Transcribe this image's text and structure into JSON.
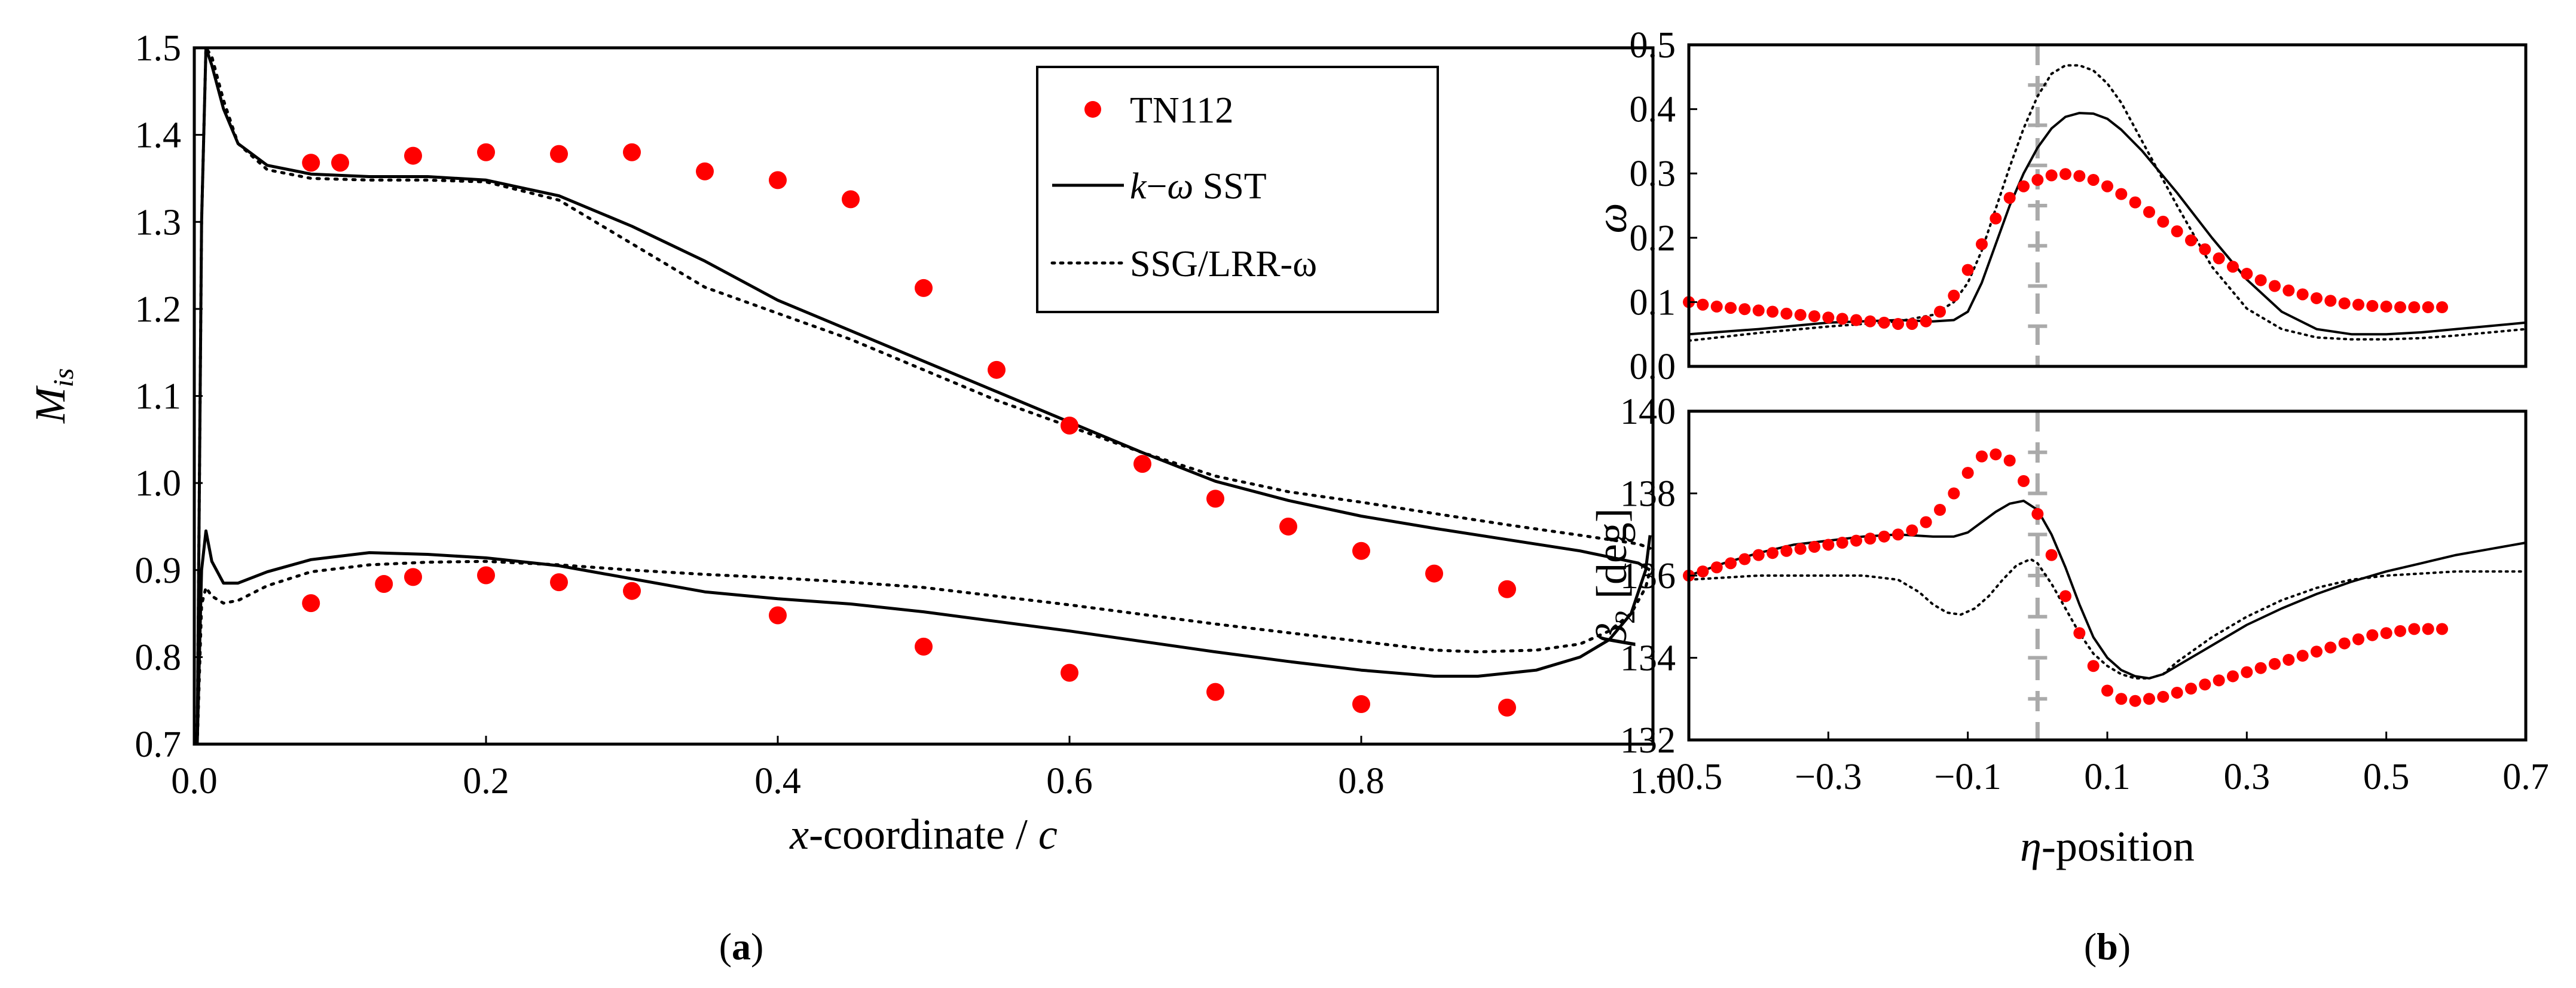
{
  "chart_data": [
    {
      "id": "a",
      "type": "line",
      "panel_label": "a",
      "title": "",
      "xlabel_var": "x",
      "xlabel_text": "-coordinate / ",
      "xlabel_c": "c",
      "ylabel_main": "M",
      "ylabel_sub": "is",
      "xlim": [
        0.0,
        1.0
      ],
      "ylim": [
        0.7,
        1.5
      ],
      "xticks": [
        0.0,
        0.2,
        0.4,
        0.6,
        0.8,
        1.0
      ],
      "xtick_labels": [
        "0.0",
        "0.2",
        "0.4",
        "0.6",
        "0.8",
        "1.0"
      ],
      "yticks": [
        0.7,
        0.8,
        0.9,
        1.0,
        1.1,
        1.2,
        1.3,
        1.4,
        1.5
      ],
      "ytick_labels": [
        "0.7",
        "0.8",
        "0.9",
        "1.0",
        "1.1",
        "1.2",
        "1.3",
        "1.4",
        "1.5"
      ],
      "grid": false,
      "legend": {
        "position": "top-right",
        "entries": [
          {
            "series": "TN112",
            "text": "TN112"
          },
          {
            "series": "k-omega SST",
            "text_k": "k",
            "text_dash": "−",
            "text_omega": "ω",
            "text_rest": " SST"
          },
          {
            "series": "SSG/LRR-omega",
            "text": "SSG/LRR-ω"
          }
        ]
      },
      "series": [
        {
          "name": "TN112",
          "style": "markers",
          "color": "#ff0000",
          "x": [
            0.08,
            0.1,
            0.15,
            0.2,
            0.25,
            0.3,
            0.35,
            0.4,
            0.45,
            0.5,
            0.55,
            0.6,
            0.65,
            0.7,
            0.75,
            0.8,
            0.85,
            0.9,
            0.08,
            0.13,
            0.15,
            0.2,
            0.25,
            0.3,
            0.4,
            0.5,
            0.6,
            0.7,
            0.8,
            0.9
          ],
          "y": [
            1.368,
            1.368,
            1.376,
            1.38,
            1.378,
            1.38,
            1.358,
            1.348,
            1.326,
            1.224,
            1.13,
            1.066,
            1.022,
            0.982,
            0.95,
            0.922,
            0.896,
            0.878,
            0.862,
            0.884,
            0.892,
            0.894,
            0.886,
            0.876,
            0.848,
            0.812,
            0.782,
            0.76,
            0.746,
            0.742
          ]
        },
        {
          "name": "k-omega SST upper",
          "legend_ref": "k-omega SST",
          "style": "solid",
          "color": "#000000",
          "x": [
            0.002,
            0.005,
            0.008,
            0.012,
            0.02,
            0.03,
            0.05,
            0.08,
            0.12,
            0.16,
            0.2,
            0.25,
            0.3,
            0.35,
            0.4,
            0.45,
            0.5,
            0.55,
            0.6,
            0.65,
            0.7,
            0.75,
            0.8,
            0.85,
            0.9,
            0.95,
            0.99,
            0.998
          ],
          "y": [
            0.7,
            1.3,
            1.5,
            1.48,
            1.43,
            1.39,
            1.365,
            1.355,
            1.352,
            1.352,
            1.348,
            1.33,
            1.295,
            1.255,
            1.21,
            1.175,
            1.14,
            1.105,
            1.07,
            1.035,
            1.002,
            0.98,
            0.962,
            0.948,
            0.935,
            0.922,
            0.908,
            0.9
          ]
        },
        {
          "name": "k-omega SST lower",
          "legend_ref": "k-omega SST",
          "style": "solid",
          "color": "#000000",
          "x": [
            0.002,
            0.005,
            0.008,
            0.012,
            0.02,
            0.03,
            0.05,
            0.08,
            0.12,
            0.16,
            0.2,
            0.25,
            0.3,
            0.35,
            0.4,
            0.45,
            0.5,
            0.55,
            0.6,
            0.65,
            0.7,
            0.75,
            0.8,
            0.85,
            0.88,
            0.92,
            0.95,
            0.97,
            0.985,
            0.995,
            0.998
          ],
          "y": [
            0.7,
            0.9,
            0.945,
            0.91,
            0.885,
            0.885,
            0.898,
            0.912,
            0.92,
            0.918,
            0.914,
            0.905,
            0.89,
            0.875,
            0.867,
            0.861,
            0.852,
            0.841,
            0.83,
            0.818,
            0.806,
            0.795,
            0.785,
            0.778,
            0.778,
            0.785,
            0.8,
            0.82,
            0.85,
            0.9,
            0.94
          ]
        },
        {
          "name": "SSG/LRR-omega upper",
          "legend_ref": "SSG/LRR-omega",
          "style": "dotted",
          "color": "#000000",
          "x": [
            0.002,
            0.005,
            0.008,
            0.012,
            0.02,
            0.03,
            0.05,
            0.08,
            0.12,
            0.16,
            0.2,
            0.25,
            0.3,
            0.35,
            0.4,
            0.45,
            0.5,
            0.55,
            0.6,
            0.65,
            0.7,
            0.75,
            0.8,
            0.85,
            0.9,
            0.95,
            0.99,
            0.998
          ],
          "y": [
            0.7,
            1.3,
            1.5,
            1.49,
            1.44,
            1.39,
            1.36,
            1.35,
            1.348,
            1.348,
            1.346,
            1.325,
            1.275,
            1.225,
            1.195,
            1.165,
            1.13,
            1.095,
            1.065,
            1.035,
            1.008,
            0.99,
            0.978,
            0.965,
            0.952,
            0.94,
            0.93,
            0.925
          ]
        },
        {
          "name": "SSG/LRR-omega lower",
          "legend_ref": "SSG/LRR-omega",
          "style": "dotted",
          "color": "#000000",
          "x": [
            0.002,
            0.005,
            0.008,
            0.012,
            0.02,
            0.03,
            0.05,
            0.08,
            0.12,
            0.16,
            0.2,
            0.25,
            0.3,
            0.35,
            0.4,
            0.45,
            0.5,
            0.55,
            0.6,
            0.65,
            0.7,
            0.75,
            0.8,
            0.85,
            0.88,
            0.92,
            0.95,
            0.97,
            0.985,
            0.995,
            0.998
          ],
          "y": [
            0.7,
            0.86,
            0.88,
            0.87,
            0.862,
            0.865,
            0.882,
            0.898,
            0.906,
            0.909,
            0.91,
            0.906,
            0.9,
            0.895,
            0.891,
            0.886,
            0.88,
            0.87,
            0.86,
            0.849,
            0.838,
            0.828,
            0.818,
            0.808,
            0.806,
            0.808,
            0.815,
            0.83,
            0.85,
            0.88,
            0.9
          ]
        }
      ]
    },
    {
      "id": "b_top",
      "type": "line",
      "panel_label": "b",
      "ylabel": "ω",
      "xlim": [
        -0.5,
        0.7
      ],
      "ylim": [
        0.0,
        0.5
      ],
      "yticks": [
        0.0,
        0.1,
        0.2,
        0.3,
        0.4,
        0.5
      ],
      "ytick_labels": [
        "0.0",
        "0.1",
        "0.2",
        "0.3",
        "0.4",
        "0.5"
      ],
      "grid": false,
      "vline_x": 0.0,
      "series": [
        {
          "name": "TN112",
          "style": "markers",
          "color": "#ff0000",
          "x": [
            -0.5,
            -0.48,
            -0.46,
            -0.44,
            -0.42,
            -0.4,
            -0.38,
            -0.36,
            -0.34,
            -0.32,
            -0.3,
            -0.28,
            -0.26,
            -0.24,
            -0.22,
            -0.2,
            -0.18,
            -0.16,
            -0.14,
            -0.12,
            -0.1,
            -0.08,
            -0.06,
            -0.04,
            -0.02,
            0.0,
            0.02,
            0.04,
            0.06,
            0.08,
            0.1,
            0.12,
            0.14,
            0.16,
            0.18,
            0.2,
            0.22,
            0.24,
            0.26,
            0.28,
            0.3,
            0.32,
            0.34,
            0.36,
            0.38,
            0.4,
            0.42,
            0.44,
            0.46,
            0.48,
            0.5,
            0.52,
            0.54,
            0.56,
            0.58
          ],
          "y": [
            0.1,
            0.096,
            0.093,
            0.091,
            0.089,
            0.087,
            0.085,
            0.082,
            0.08,
            0.078,
            0.076,
            0.074,
            0.072,
            0.07,
            0.068,
            0.066,
            0.066,
            0.07,
            0.085,
            0.11,
            0.15,
            0.19,
            0.23,
            0.262,
            0.28,
            0.29,
            0.297,
            0.299,
            0.296,
            0.29,
            0.28,
            0.268,
            0.255,
            0.24,
            0.225,
            0.21,
            0.196,
            0.182,
            0.168,
            0.155,
            0.144,
            0.134,
            0.125,
            0.118,
            0.112,
            0.106,
            0.102,
            0.098,
            0.096,
            0.094,
            0.093,
            0.092,
            0.092,
            0.092,
            0.092
          ]
        },
        {
          "name": "k-omega SST",
          "style": "solid",
          "color": "#000000",
          "x": [
            -0.5,
            -0.4,
            -0.3,
            -0.2,
            -0.15,
            -0.12,
            -0.1,
            -0.08,
            -0.06,
            -0.04,
            -0.02,
            0.0,
            0.02,
            0.04,
            0.06,
            0.08,
            0.1,
            0.12,
            0.15,
            0.2,
            0.25,
            0.3,
            0.35,
            0.4,
            0.45,
            0.5,
            0.55,
            0.6,
            0.65,
            0.7
          ],
          "y": [
            0.05,
            0.058,
            0.068,
            0.072,
            0.07,
            0.072,
            0.085,
            0.13,
            0.19,
            0.25,
            0.3,
            0.34,
            0.37,
            0.388,
            0.394,
            0.393,
            0.385,
            0.368,
            0.335,
            0.27,
            0.2,
            0.135,
            0.085,
            0.058,
            0.05,
            0.05,
            0.053,
            0.058,
            0.063,
            0.068
          ]
        },
        {
          "name": "SSG/LRR-omega",
          "style": "dotted",
          "color": "#000000",
          "x": [
            -0.5,
            -0.4,
            -0.3,
            -0.25,
            -0.2,
            -0.15,
            -0.12,
            -0.1,
            -0.08,
            -0.06,
            -0.04,
            -0.02,
            0.0,
            0.02,
            0.04,
            0.06,
            0.08,
            0.1,
            0.12,
            0.15,
            0.2,
            0.25,
            0.3,
            0.35,
            0.4,
            0.45,
            0.5,
            0.55,
            0.6,
            0.65,
            0.7
          ],
          "y": [
            0.04,
            0.052,
            0.062,
            0.066,
            0.07,
            0.08,
            0.1,
            0.13,
            0.18,
            0.245,
            0.31,
            0.37,
            0.42,
            0.455,
            0.468,
            0.468,
            0.46,
            0.44,
            0.41,
            0.35,
            0.25,
            0.155,
            0.09,
            0.058,
            0.045,
            0.042,
            0.042,
            0.044,
            0.048,
            0.053,
            0.058
          ]
        }
      ]
    },
    {
      "id": "b_bottom",
      "type": "line",
      "panel_label": "b",
      "xlabel_var": "η",
      "xlabel_text": "-position",
      "ylabel_main": "β",
      "ylabel_sub": "2",
      "ylabel_unit": " [deg]",
      "xlim": [
        -0.5,
        0.7
      ],
      "ylim": [
        132,
        140
      ],
      "xticks": [
        -0.5,
        -0.3,
        -0.1,
        0.1,
        0.3,
        0.5,
        0.7
      ],
      "xtick_labels": [
        "−0.5",
        "−0.3",
        "−0.1",
        "0.1",
        "0.3",
        "0.5",
        "0.7"
      ],
      "yticks": [
        132,
        134,
        136,
        138,
        140
      ],
      "ytick_labels": [
        "132",
        "134",
        "136",
        "138",
        "140"
      ],
      "grid": false,
      "vline_x": 0.0,
      "series": [
        {
          "name": "TN112",
          "style": "markers",
          "color": "#ff0000",
          "x": [
            -0.5,
            -0.48,
            -0.46,
            -0.44,
            -0.42,
            -0.4,
            -0.38,
            -0.36,
            -0.34,
            -0.32,
            -0.3,
            -0.28,
            -0.26,
            -0.24,
            -0.22,
            -0.2,
            -0.18,
            -0.16,
            -0.14,
            -0.12,
            -0.1,
            -0.08,
            -0.06,
            -0.04,
            -0.02,
            0.0,
            0.02,
            0.04,
            0.06,
            0.08,
            0.1,
            0.12,
            0.14,
            0.16,
            0.18,
            0.2,
            0.22,
            0.24,
            0.26,
            0.28,
            0.3,
            0.32,
            0.34,
            0.36,
            0.38,
            0.4,
            0.42,
            0.44,
            0.46,
            0.48,
            0.5,
            0.52,
            0.54,
            0.56,
            0.58
          ],
          "y": [
            136.0,
            136.1,
            136.2,
            136.3,
            136.4,
            136.5,
            136.55,
            136.6,
            136.65,
            136.7,
            136.75,
            136.8,
            136.85,
            136.9,
            136.95,
            137.0,
            137.1,
            137.3,
            137.6,
            138.0,
            138.5,
            138.9,
            138.95,
            138.8,
            138.3,
            137.5,
            136.5,
            135.5,
            134.6,
            133.8,
            133.2,
            133.0,
            132.95,
            133.0,
            133.05,
            133.15,
            133.25,
            133.35,
            133.45,
            133.55,
            133.65,
            133.75,
            133.85,
            133.95,
            134.05,
            134.15,
            134.25,
            134.35,
            134.45,
            134.55,
            134.6,
            134.65,
            134.7,
            134.7,
            134.7
          ]
        },
        {
          "name": "k-omega SST",
          "style": "solid",
          "color": "#000000",
          "x": [
            -0.5,
            -0.45,
            -0.4,
            -0.35,
            -0.3,
            -0.25,
            -0.2,
            -0.15,
            -0.12,
            -0.1,
            -0.08,
            -0.06,
            -0.04,
            -0.02,
            0.0,
            0.02,
            0.04,
            0.06,
            0.08,
            0.1,
            0.12,
            0.14,
            0.16,
            0.18,
            0.2,
            0.25,
            0.3,
            0.35,
            0.4,
            0.45,
            0.5,
            0.55,
            0.6,
            0.65,
            0.7
          ],
          "y": [
            136.0,
            136.3,
            136.55,
            136.75,
            136.85,
            136.95,
            137.0,
            136.95,
            136.95,
            137.05,
            137.3,
            137.55,
            137.75,
            137.82,
            137.6,
            137.0,
            136.2,
            135.3,
            134.5,
            134.0,
            133.7,
            133.55,
            133.5,
            133.6,
            133.8,
            134.3,
            134.8,
            135.2,
            135.55,
            135.85,
            136.1,
            136.3,
            136.5,
            136.65,
            136.8
          ]
        },
        {
          "name": "SSG/LRR-omega",
          "style": "dotted",
          "color": "#000000",
          "x": [
            -0.5,
            -0.4,
            -0.3,
            -0.25,
            -0.2,
            -0.17,
            -0.15,
            -0.13,
            -0.11,
            -0.09,
            -0.07,
            -0.05,
            -0.03,
            -0.01,
            0.0,
            0.02,
            0.04,
            0.06,
            0.08,
            0.1,
            0.12,
            0.14,
            0.16,
            0.18,
            0.2,
            0.25,
            0.3,
            0.35,
            0.4,
            0.45,
            0.5,
            0.55,
            0.6,
            0.65,
            0.7
          ],
          "y": [
            135.9,
            136.0,
            136.0,
            136.0,
            135.9,
            135.6,
            135.3,
            135.1,
            135.05,
            135.2,
            135.5,
            135.9,
            136.25,
            136.4,
            136.3,
            135.8,
            135.2,
            134.6,
            134.1,
            133.8,
            133.6,
            133.5,
            133.5,
            133.6,
            133.9,
            134.5,
            135.0,
            135.4,
            135.7,
            135.9,
            136.0,
            136.05,
            136.1,
            136.1,
            136.1
          ]
        }
      ]
    }
  ]
}
